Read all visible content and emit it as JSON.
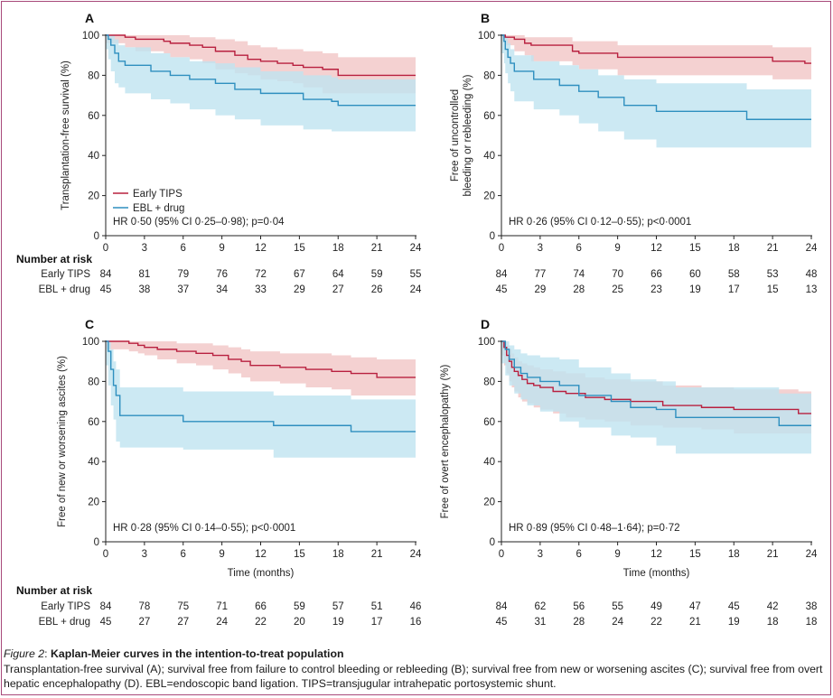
{
  "colors": {
    "early": "#b8203f",
    "ebl": "#2e8fbf",
    "early_band": "#f0c2c2",
    "ebl_band": "#bfe3f0",
    "axis": "#222222",
    "frame": "#a8497a"
  },
  "legend": {
    "early": "Early TIPS",
    "ebl": "EBL + drug"
  },
  "risk_header": "Number at risk",
  "caption": {
    "label": "Figure 2",
    "sep": ": ",
    "title": "Kaplan-Meier curves in the intention-to-treat population",
    "text": "Transplantation-free survival (A); survival free from failure to control bleeding or rebleeding (B); survival free from new or worsening ascites (C); survival free from overt hepatic encephalopathy (D). EBL=endoscopic band ligation. TIPS=transjugular intrahepatic portosystemic shunt."
  },
  "chart_data": [
    {
      "type": "line",
      "panel": "A",
      "ylabel": "Transplantation-free survival (%)",
      "xlabel": "",
      "xlim": [
        0,
        24
      ],
      "ylim": [
        0,
        100
      ],
      "xticks": [
        0,
        3,
        6,
        9,
        12,
        15,
        18,
        21,
        24
      ],
      "yticks": [
        0,
        20,
        40,
        60,
        80,
        100
      ],
      "hr_text": "HR 0·50 (95% CI 0·25–0·98); p=0·04",
      "show_legend": true,
      "series": [
        {
          "name": "Early TIPS",
          "x": [
            0,
            1.5,
            2.3,
            4.5,
            5.0,
            6.5,
            7.5,
            8.5,
            10.0,
            11.0,
            12.0,
            13.3,
            14.5,
            15.3,
            16.8,
            18.0,
            24
          ],
          "y": [
            100,
            99,
            98,
            97,
            96,
            95,
            94,
            92,
            90,
            88,
            87,
            86,
            85,
            84,
            83,
            80,
            80
          ],
          "lower": [
            100,
            96,
            94,
            92,
            91,
            89,
            88,
            86,
            83,
            81,
            80,
            78,
            77,
            76,
            74,
            71,
            71
          ],
          "upper": [
            100,
            100,
            100,
            100,
            100,
            99,
            99,
            98,
            97,
            95,
            94,
            93,
            93,
            92,
            91,
            89,
            89
          ]
        },
        {
          "name": "EBL + drug",
          "x": [
            0,
            0.2,
            0.4,
            0.7,
            1.0,
            1.5,
            3.5,
            5.0,
            6.5,
            8.5,
            10.0,
            12.0,
            15.3,
            17.5,
            18.0,
            24
          ],
          "y": [
            100,
            98,
            95,
            91,
            87,
            85,
            82,
            80,
            78,
            76,
            73,
            71,
            68,
            67,
            65,
            65
          ],
          "lower": [
            100,
            93,
            88,
            82,
            76,
            74,
            71,
            68,
            66,
            63,
            60,
            58,
            55,
            53,
            52,
            52
          ],
          "upper": [
            100,
            100,
            100,
            98,
            95,
            94,
            91,
            89,
            87,
            86,
            84,
            82,
            80,
            79,
            78,
            78
          ]
        }
      ],
      "risk": {
        "times": [
          0,
          3,
          6,
          9,
          12,
          15,
          18,
          21,
          24
        ],
        "rows": [
          {
            "label": "Early TIPS",
            "values": [
              84,
              81,
              79,
              76,
              72,
              67,
              64,
              59,
              55
            ]
          },
          {
            "label": "EBL + drug",
            "values": [
              45,
              38,
              37,
              34,
              33,
              29,
              27,
              26,
              24
            ]
          }
        ]
      }
    },
    {
      "type": "line",
      "panel": "B",
      "ylabel": "Free of uncontrolled bleeding or rebleeding (%)",
      "xlabel": "",
      "xlim": [
        0,
        24
      ],
      "ylim": [
        0,
        100
      ],
      "xticks": [
        0,
        3,
        6,
        9,
        12,
        15,
        18,
        21,
        24
      ],
      "yticks": [
        0,
        20,
        40,
        60,
        80,
        100
      ],
      "hr_text": "HR 0·26 (95% CI 0·12–0·55); p<0·0001",
      "show_legend": false,
      "series": [
        {
          "name": "Early TIPS",
          "x": [
            0,
            0.3,
            1.0,
            1.8,
            2.3,
            5.5,
            6.0,
            9.0,
            21.0,
            23.5,
            24
          ],
          "y": [
            100,
            99,
            98,
            96,
            95,
            92,
            91,
            89,
            87,
            86,
            86
          ],
          "lower": [
            100,
            97,
            95,
            92,
            90,
            87,
            85,
            83,
            80,
            78,
            78
          ],
          "upper": [
            100,
            100,
            100,
            99,
            99,
            97,
            97,
            95,
            94,
            94,
            94
          ]
        },
        {
          "name": "EBL + drug",
          "x": [
            0,
            0.2,
            0.3,
            0.5,
            0.7,
            1.0,
            2.5,
            4.5,
            6.0,
            7.5,
            9.5,
            12.0,
            19.0,
            24
          ],
          "y": [
            100,
            97,
            93,
            89,
            86,
            82,
            78,
            75,
            72,
            69,
            65,
            62,
            58,
            58
          ],
          "lower": [
            100,
            91,
            86,
            81,
            76,
            72,
            67,
            63,
            60,
            56,
            52,
            48,
            44,
            44
          ],
          "upper": [
            100,
            100,
            99,
            96,
            93,
            90,
            87,
            85,
            83,
            80,
            78,
            76,
            73,
            73
          ]
        }
      ],
      "risk": {
        "times": [
          0,
          3,
          6,
          9,
          12,
          15,
          18,
          21,
          24
        ],
        "rows": [
          {
            "label": "Early TIPS",
            "values": [
              84,
              77,
              74,
              70,
              66,
              60,
              58,
              53,
              48
            ]
          },
          {
            "label": "EBL + drug",
            "values": [
              45,
              29,
              28,
              25,
              23,
              19,
              17,
              15,
              13
            ]
          }
        ]
      }
    },
    {
      "type": "line",
      "panel": "C",
      "ylabel": "Free of new or worsening ascites (%)",
      "xlabel": "Time (months)",
      "xlim": [
        0,
        24
      ],
      "ylim": [
        0,
        100
      ],
      "xticks": [
        0,
        3,
        6,
        9,
        12,
        15,
        18,
        21,
        24
      ],
      "yticks": [
        0,
        20,
        40,
        60,
        80,
        100
      ],
      "hr_text": "HR 0·28 (95% CI 0·14–0·55); p<0·0001",
      "show_legend": false,
      "series": [
        {
          "name": "Early TIPS",
          "x": [
            0,
            1.8,
            2.5,
            3.0,
            4.0,
            5.5,
            7.0,
            8.3,
            9.5,
            10.5,
            11.2,
            13.5,
            15.5,
            17.5,
            19.0,
            21.0,
            24
          ],
          "y": [
            100,
            99,
            98,
            97,
            96,
            95,
            94,
            93,
            91,
            90,
            88,
            87,
            86,
            85,
            84,
            82,
            82
          ],
          "lower": [
            100,
            96,
            95,
            94,
            93,
            91,
            89,
            88,
            86,
            84,
            82,
            80,
            79,
            77,
            76,
            73,
            73
          ],
          "upper": [
            100,
            100,
            100,
            100,
            100,
            99,
            99,
            98,
            97,
            96,
            95,
            94,
            94,
            93,
            92,
            91,
            91
          ]
        },
        {
          "name": "EBL + drug",
          "x": [
            0,
            0.2,
            0.4,
            0.6,
            0.8,
            1.1,
            6.0,
            13.0,
            19.0,
            24
          ],
          "y": [
            100,
            95,
            86,
            78,
            73,
            63,
            60,
            58,
            55,
            55
          ],
          "lower": [
            100,
            88,
            78,
            68,
            61,
            50,
            47,
            46,
            42,
            42
          ],
          "upper": [
            100,
            100,
            96,
            90,
            86,
            77,
            75,
            73,
            71,
            71
          ]
        }
      ],
      "risk": {
        "times": [
          0,
          3,
          6,
          9,
          12,
          15,
          18,
          21,
          24
        ],
        "rows": [
          {
            "label": "Early TIPS",
            "values": [
              84,
              78,
              75,
              71,
              66,
              59,
              57,
              51,
              46
            ]
          },
          {
            "label": "EBL + drug",
            "values": [
              45,
              27,
              27,
              24,
              22,
              20,
              19,
              17,
              16
            ]
          }
        ]
      }
    },
    {
      "type": "line",
      "panel": "D",
      "ylabel": "Free of overt encephalopathy (%)",
      "xlabel": "Time (months)",
      "xlim": [
        0,
        24
      ],
      "ylim": [
        0,
        100
      ],
      "xticks": [
        0,
        3,
        6,
        9,
        12,
        15,
        18,
        21,
        24
      ],
      "yticks": [
        0,
        20,
        40,
        60,
        80,
        100
      ],
      "hr_text": "HR 0·89 (95% CI 0·48–1·64); p=0·72",
      "show_legend": false,
      "series": [
        {
          "name": "Early TIPS",
          "x": [
            0,
            0.2,
            0.4,
            0.6,
            0.8,
            1.0,
            1.3,
            1.6,
            2.0,
            2.5,
            3.0,
            4.0,
            5.0,
            6.5,
            8.0,
            10.0,
            12.5,
            15.5,
            18.0,
            23.0,
            24
          ],
          "y": [
            100,
            97,
            93,
            90,
            87,
            85,
            83,
            81,
            79,
            78,
            77,
            75,
            74,
            72,
            71,
            70,
            68,
            67,
            66,
            64,
            64
          ],
          "lower": [
            100,
            93,
            88,
            84,
            80,
            77,
            75,
            72,
            70,
            69,
            67,
            66,
            64,
            62,
            61,
            60,
            58,
            57,
            56,
            54,
            54
          ],
          "upper": [
            100,
            100,
            98,
            96,
            94,
            92,
            90,
            89,
            88,
            87,
            86,
            85,
            84,
            82,
            81,
            80,
            78,
            77,
            76,
            75,
            75
          ]
        },
        {
          "name": "EBL + drug",
          "x": [
            0,
            0.3,
            0.6,
            1.0,
            1.5,
            2.0,
            3.0,
            4.5,
            6.0,
            8.5,
            10.0,
            12.0,
            13.5,
            21.5,
            24
          ],
          "y": [
            100,
            96,
            91,
            87,
            84,
            82,
            80,
            78,
            73,
            70,
            67,
            66,
            62,
            58,
            58
          ],
          "lower": [
            100,
            89,
            83,
            78,
            74,
            71,
            68,
            65,
            60,
            57,
            53,
            52,
            48,
            44,
            44
          ],
          "upper": [
            100,
            100,
            98,
            96,
            94,
            93,
            92,
            91,
            87,
            84,
            81,
            80,
            77,
            74,
            74
          ]
        }
      ],
      "risk": {
        "times": [
          0,
          3,
          6,
          9,
          12,
          15,
          18,
          21,
          24
        ],
        "rows": [
          {
            "label": "Early TIPS",
            "values": [
              84,
              62,
              56,
              55,
              49,
              47,
              45,
              42,
              38
            ]
          },
          {
            "label": "EBL + drug",
            "values": [
              45,
              31,
              28,
              24,
              22,
              21,
              19,
              18,
              18
            ]
          }
        ]
      }
    }
  ]
}
